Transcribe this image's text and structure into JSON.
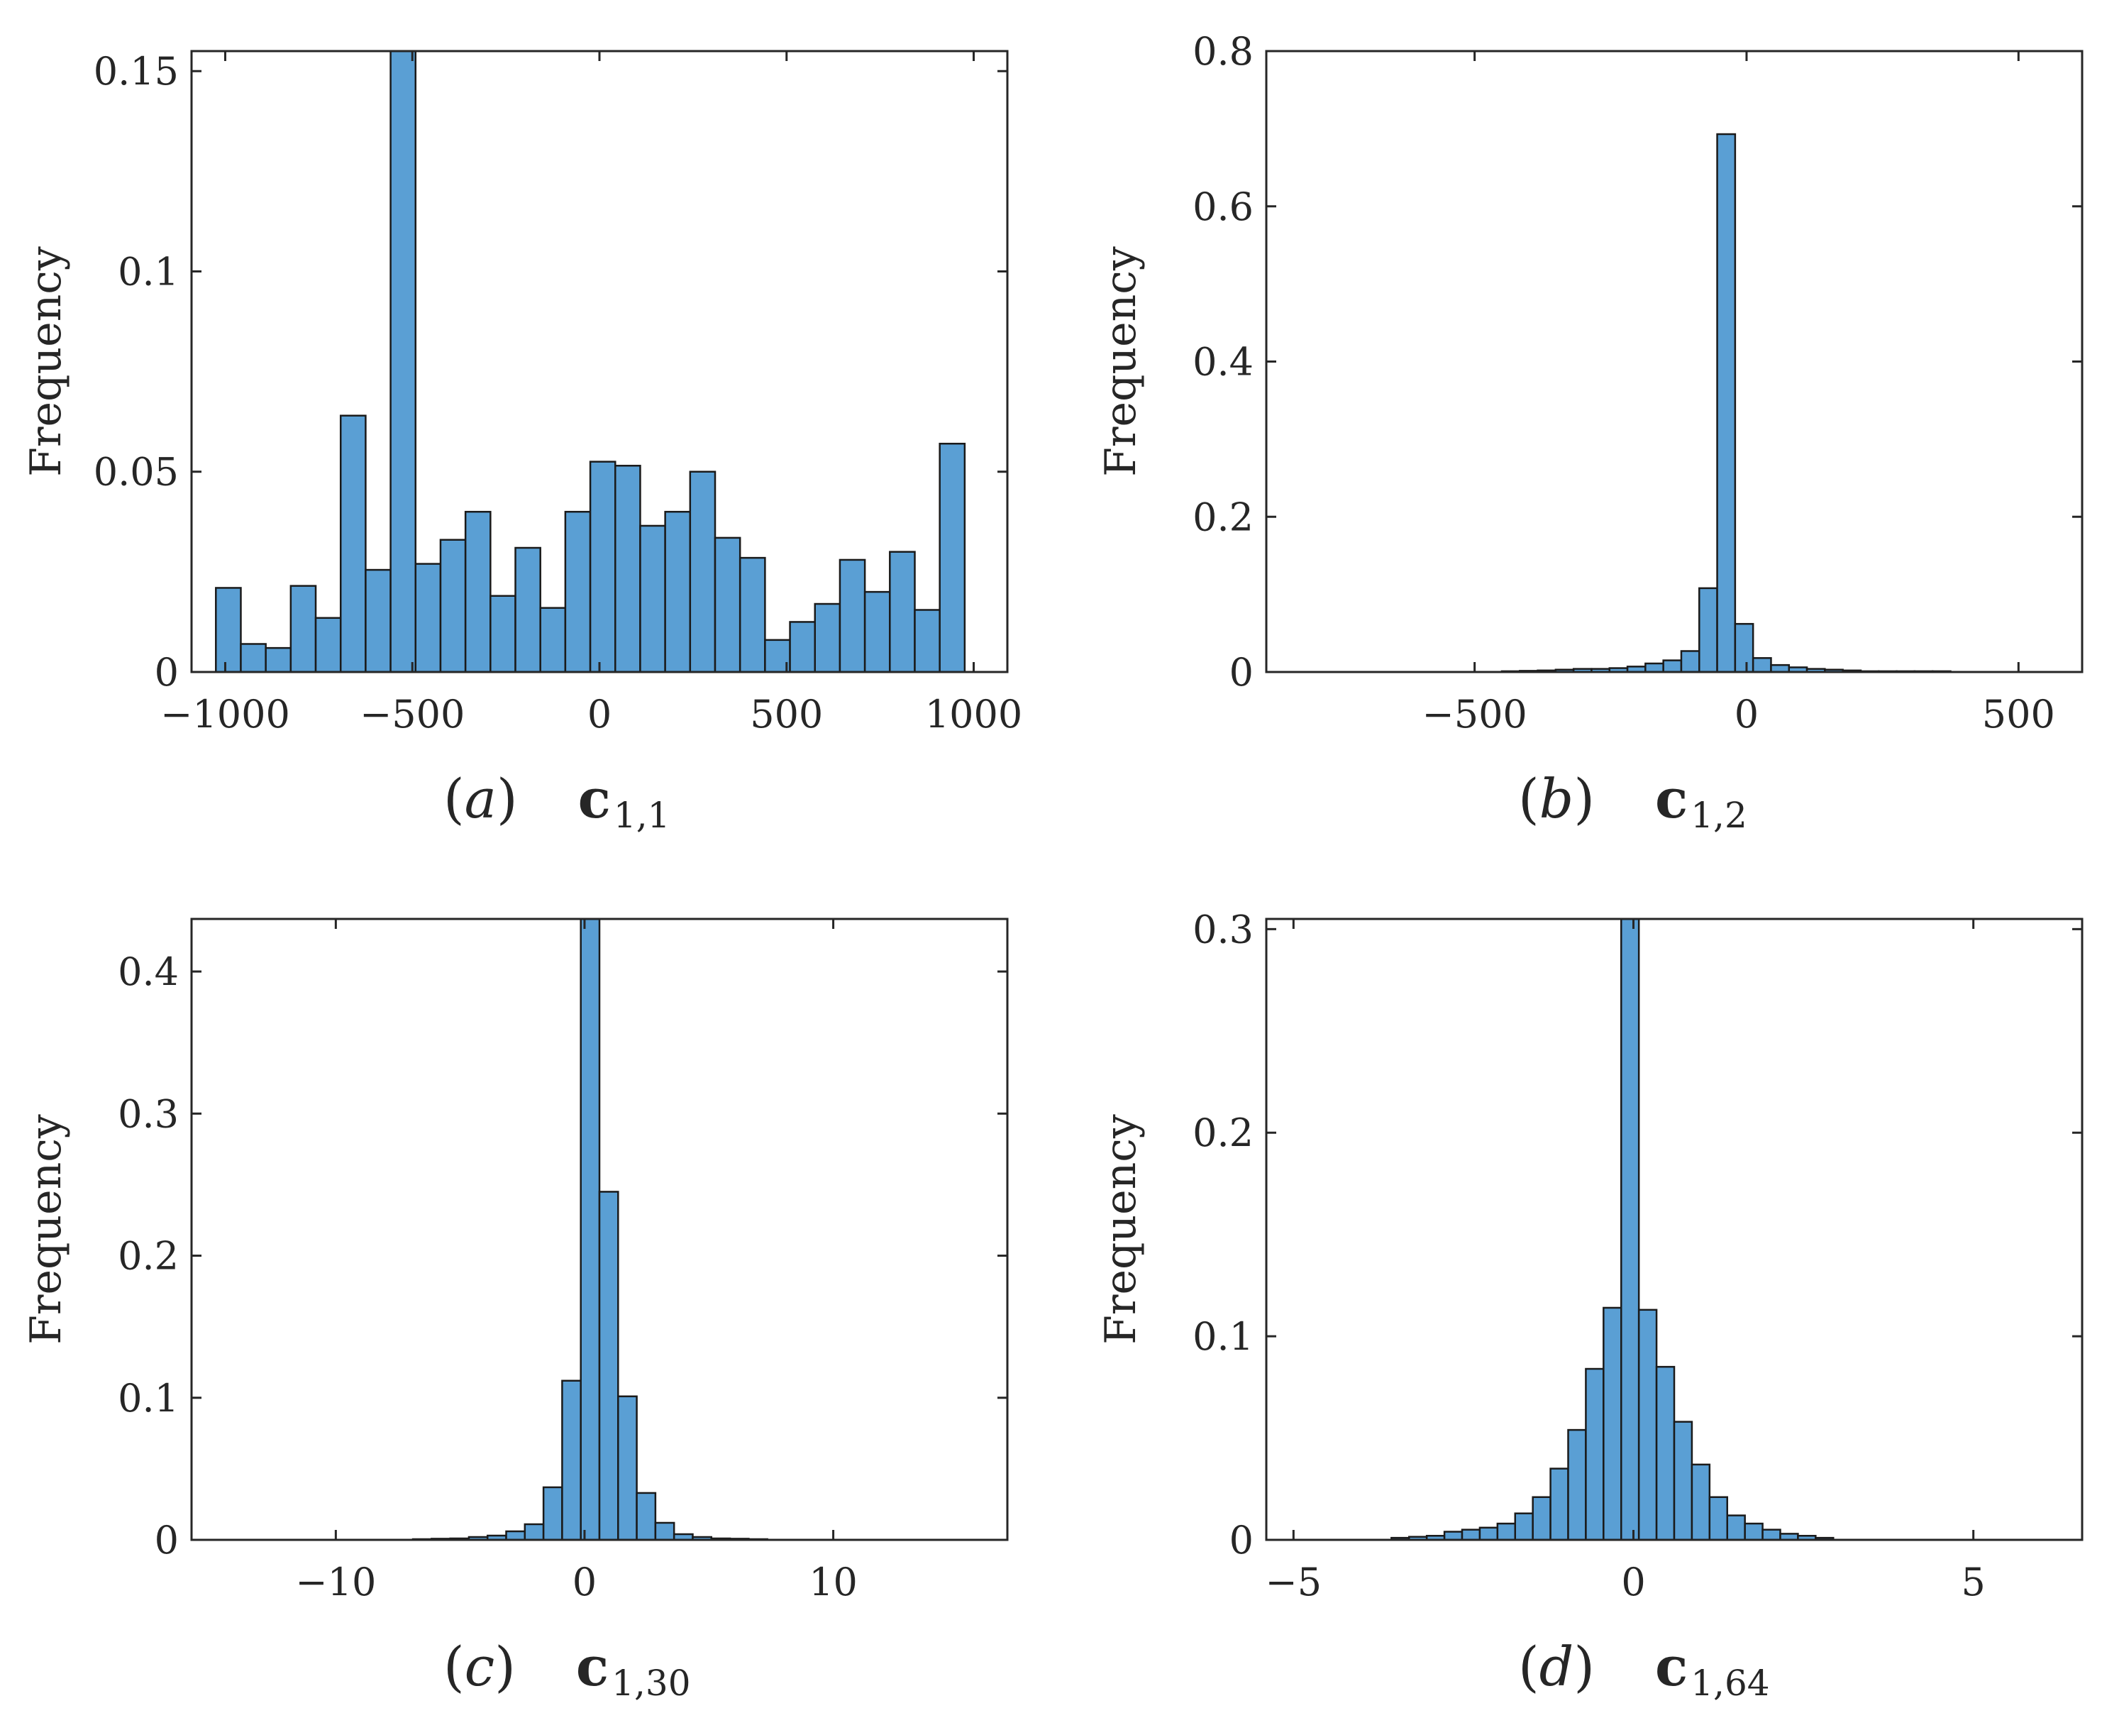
{
  "chart_data": [
    {
      "type": "bar",
      "panel": "a",
      "caption": {
        "letter": "a",
        "variable": "c",
        "subscript": "1,1"
      },
      "ylabel": "Frequency",
      "xlim": [
        -1090,
        1090
      ],
      "ylim": [
        0,
        0.155
      ],
      "xticks": [
        -1000,
        -500,
        0,
        500,
        1000
      ],
      "xtick_labels": [
        "−1000",
        "−500",
        "0",
        "500",
        "1000"
      ],
      "yticks": [
        0,
        0.05,
        0.1,
        0.15
      ],
      "ytick_labels": [
        "0",
        "0.05",
        "0.1",
        "0.15"
      ],
      "bin_start": -1025,
      "bin_width": 66.7,
      "values": [
        0.021,
        0.007,
        0.006,
        0.0215,
        0.0135,
        0.064,
        0.0255,
        0.155,
        0.027,
        0.033,
        0.04,
        0.019,
        0.031,
        0.016,
        0.04,
        0.0525,
        0.0515,
        0.0365,
        0.04,
        0.05,
        0.0335,
        0.0285,
        0.008,
        0.0125,
        0.017,
        0.028,
        0.02,
        0.03,
        0.0155,
        0.057
      ]
    },
    {
      "type": "bar",
      "panel": "b",
      "caption": {
        "letter": "b",
        "variable": "c",
        "subscript": "1,2"
      },
      "ylabel": "Frequency",
      "xlim": [
        -883,
        617
      ],
      "ylim": [
        0,
        0.8
      ],
      "xticks": [
        -500,
        0,
        500
      ],
      "xtick_labels": [
        "−500",
        "0",
        "500"
      ],
      "yticks": [
        0,
        0.2,
        0.4,
        0.6,
        0.8
      ],
      "ytick_labels": [
        "0",
        "0.2",
        "0.4",
        "0.6",
        "0.8"
      ],
      "bin_start": -450,
      "bin_width": 33,
      "values": [
        0.001,
        0.0015,
        0.002,
        0.003,
        0.004,
        0.004,
        0.005,
        0.007,
        0.011,
        0.015,
        0.027,
        0.108,
        0.693,
        0.062,
        0.018,
        0.009,
        0.006,
        0.004,
        0.003,
        0.002,
        0.001,
        0.001,
        0.001,
        0.001,
        0.001
      ]
    },
    {
      "type": "bar",
      "panel": "c",
      "caption": {
        "letter": "c",
        "variable": "c",
        "subscript": "1,30"
      },
      "ylabel": "Frequency",
      "xlim": [
        -15.8,
        17.0
      ],
      "ylim": [
        0,
        0.437
      ],
      "xticks": [
        -10,
        0,
        10
      ],
      "xtick_labels": [
        "−10",
        "0",
        "10"
      ],
      "yticks": [
        0,
        0.1,
        0.2,
        0.3,
        0.4
      ],
      "ytick_labels": [
        "0",
        "0.1",
        "0.2",
        "0.3",
        "0.4"
      ],
      "bin_start": -6.9,
      "bin_width": 0.75,
      "values": [
        0.0005,
        0.0008,
        0.001,
        0.002,
        0.003,
        0.006,
        0.011,
        0.037,
        0.112,
        0.437,
        0.245,
        0.101,
        0.033,
        0.012,
        0.004,
        0.002,
        0.001,
        0.0008,
        0.0005
      ]
    },
    {
      "type": "bar",
      "panel": "d",
      "caption": {
        "letter": "d",
        "variable": "c",
        "subscript": "1,64"
      },
      "ylabel": "Frequency",
      "xlim": [
        -5.4,
        6.6
      ],
      "ylim": [
        0,
        0.305
      ],
      "xticks": [
        -5,
        0,
        5
      ],
      "xtick_labels": [
        "−5",
        "0",
        "5"
      ],
      "yticks": [
        0,
        0.1,
        0.2,
        0.3
      ],
      "ytick_labels": [
        "0",
        "0.1",
        "0.2",
        "0.3"
      ],
      "bin_start": -3.56,
      "bin_width": 0.26,
      "values": [
        0.001,
        0.0015,
        0.002,
        0.004,
        0.005,
        0.006,
        0.008,
        0.013,
        0.021,
        0.035,
        0.054,
        0.084,
        0.114,
        0.305,
        0.113,
        0.085,
        0.058,
        0.037,
        0.021,
        0.012,
        0.008,
        0.005,
        0.003,
        0.002,
        0.001
      ]
    }
  ]
}
